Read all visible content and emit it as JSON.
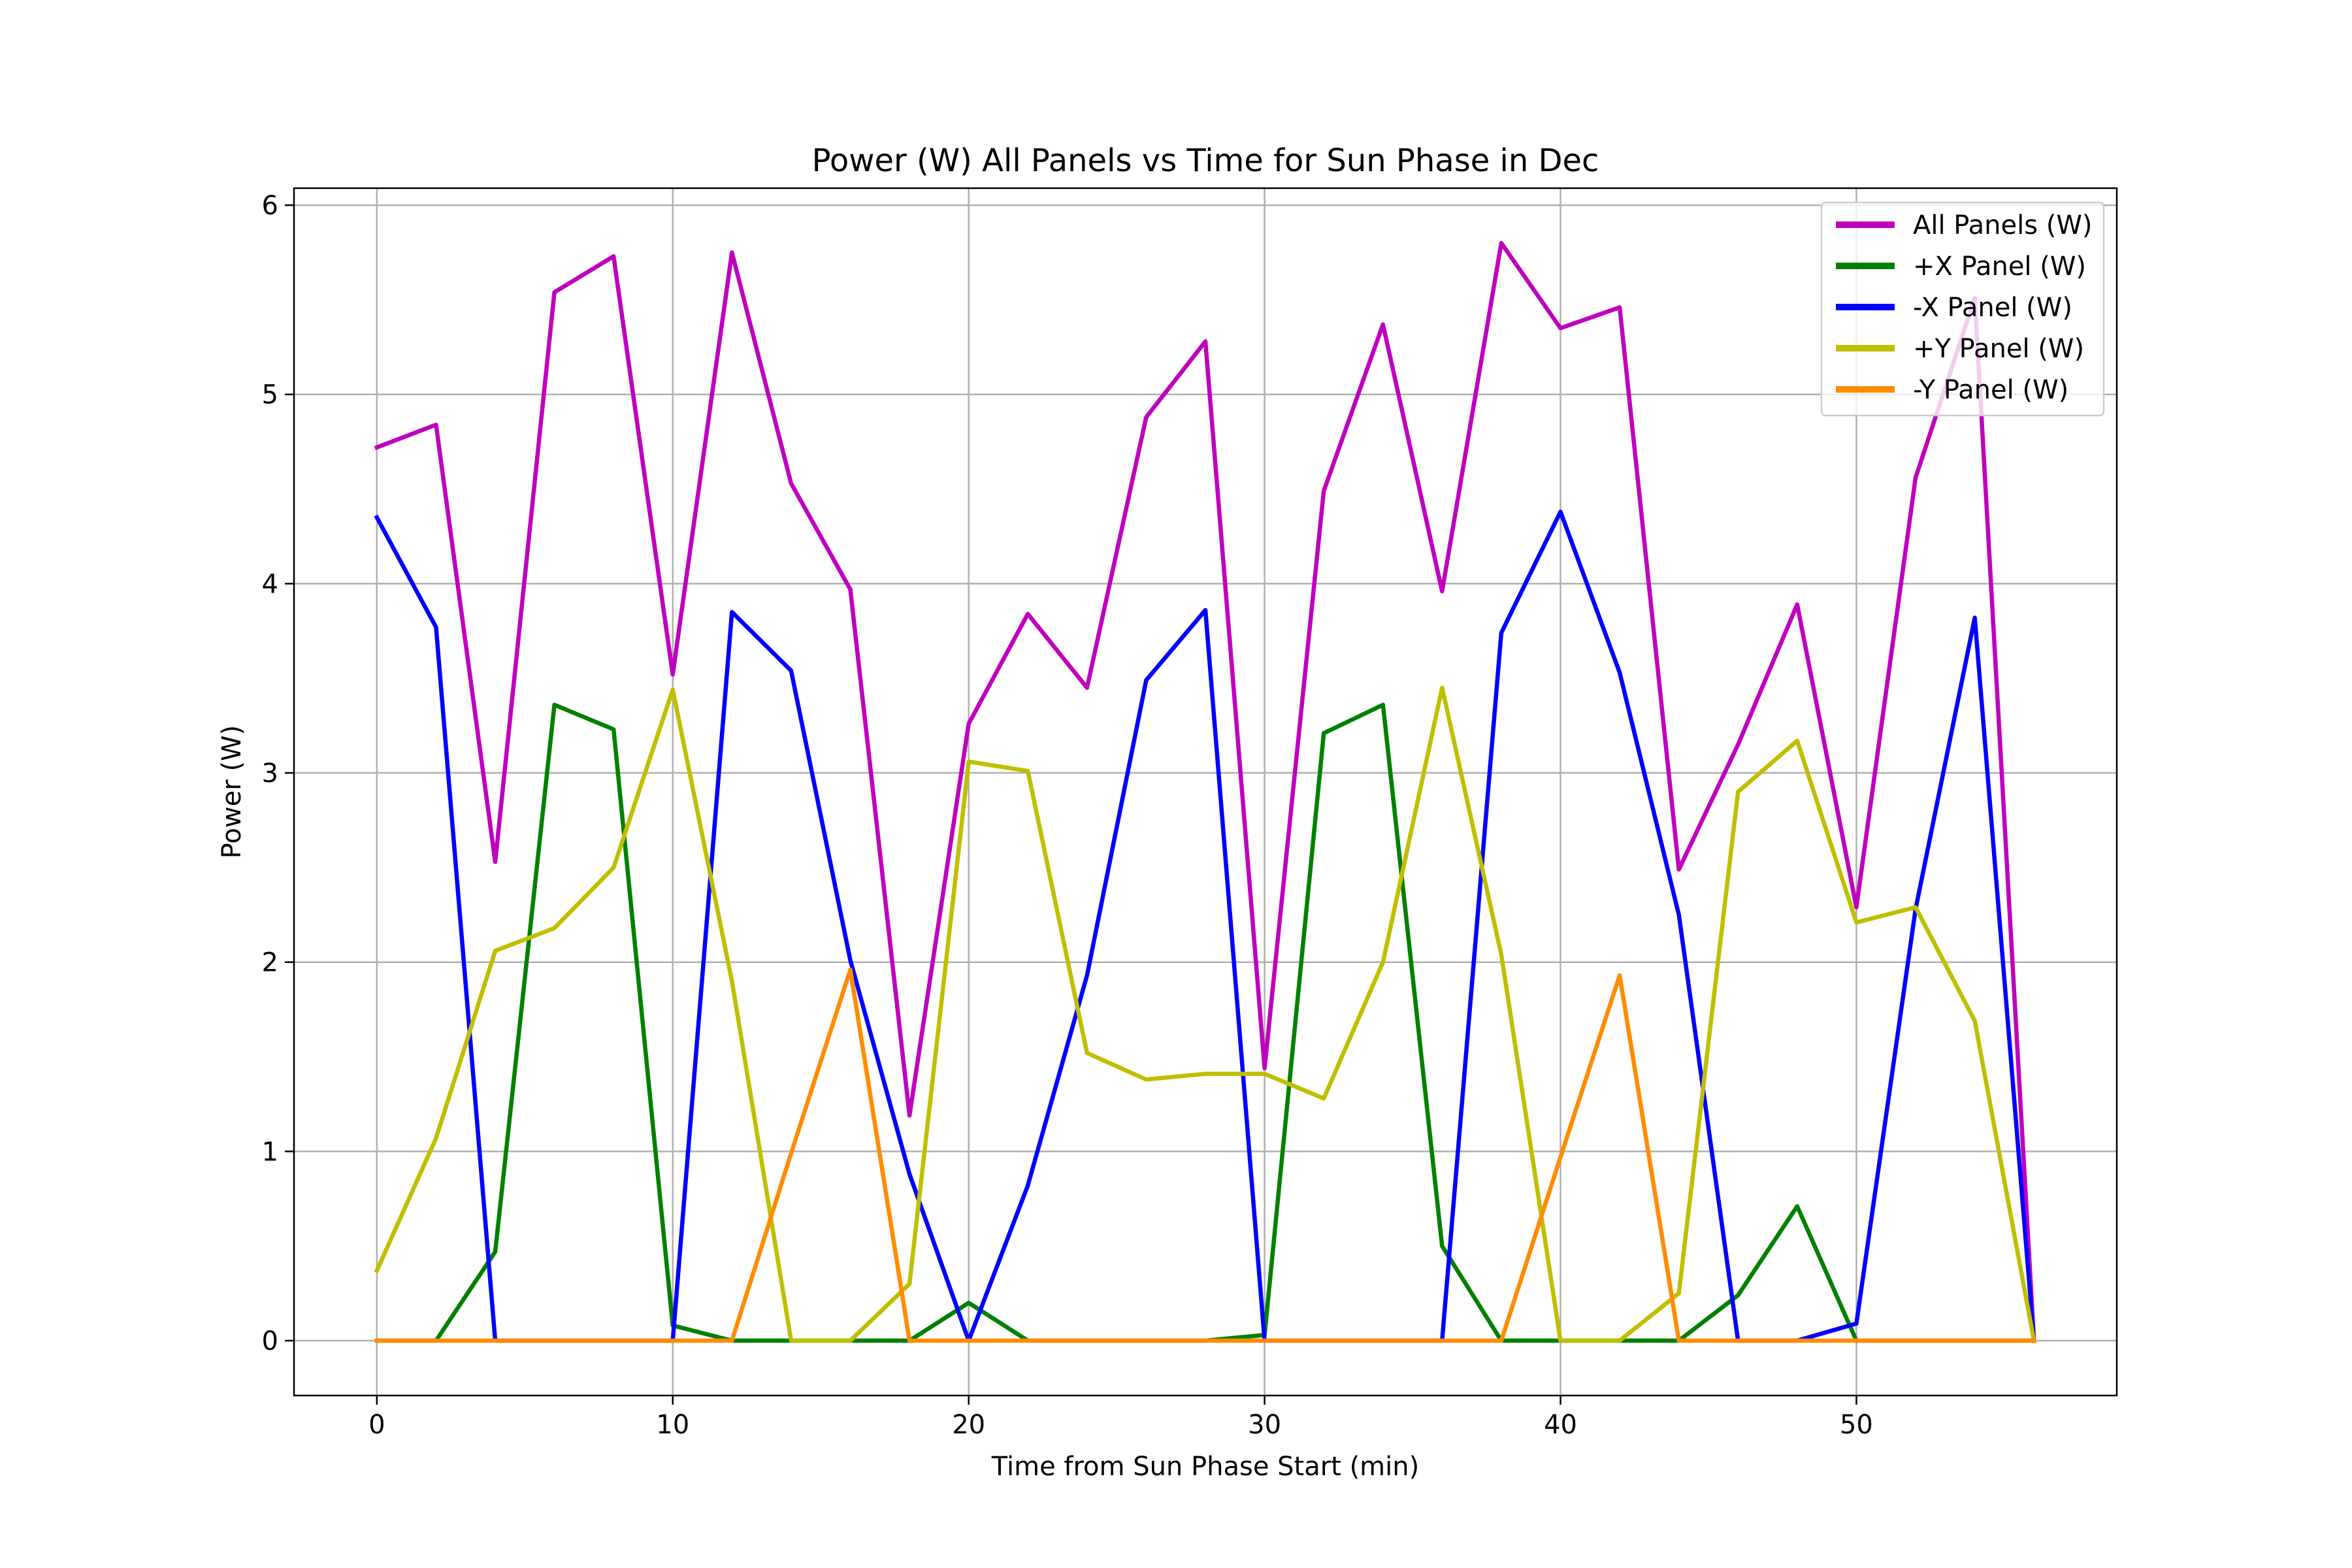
{
  "chart_data": {
    "type": "line",
    "title": "Power (W) All Panels vs Time for Sun Phase in Dec",
    "xlabel": "Time from Sun Phase Start (min)",
    "ylabel": "Power (W)",
    "xlim": [
      -2.8,
      58.8
    ],
    "ylim": [
      -0.29,
      6.09
    ],
    "xticks": [
      0,
      10,
      20,
      30,
      40,
      50
    ],
    "yticks": [
      0,
      1,
      2,
      3,
      4,
      5,
      6
    ],
    "grid": true,
    "legend_position": "top-right",
    "x": [
      0,
      2,
      4,
      6,
      8,
      10,
      12,
      14,
      16,
      18,
      20,
      22,
      24,
      26,
      28,
      30,
      32,
      34,
      36,
      38,
      40,
      42,
      44,
      46,
      48,
      50,
      52,
      54,
      56
    ],
    "series": [
      {
        "name": "All Panels (W)",
        "color": "#bf00bf",
        "values": [
          4.72,
          4.84,
          2.53,
          5.54,
          5.73,
          3.52,
          5.75,
          4.53,
          3.97,
          1.19,
          3.26,
          3.84,
          3.45,
          4.88,
          5.28,
          1.44,
          4.49,
          5.37,
          3.96,
          5.8,
          5.35,
          5.46,
          2.49,
          3.15,
          3.89,
          2.29,
          4.56,
          5.51,
          0.0
        ]
      },
      {
        "name": "+X Panel (W)",
        "color": "#008000",
        "values": [
          0.0,
          0.0,
          0.47,
          3.36,
          3.23,
          0.08,
          0.0,
          0.0,
          0.0,
          0.0,
          0.2,
          0.0,
          0.0,
          0.0,
          0.0,
          0.03,
          3.21,
          3.36,
          0.5,
          0.0,
          0.0,
          0.0,
          0.0,
          0.24,
          0.71,
          0.0,
          0.0,
          0.0,
          0.0
        ]
      },
      {
        "name": "-X Panel (W)",
        "color": "#0000ff",
        "values": [
          4.35,
          3.77,
          0.0,
          0.0,
          0.0,
          0.0,
          3.85,
          3.54,
          2.01,
          0.88,
          0.0,
          0.82,
          1.93,
          3.49,
          3.86,
          0.0,
          0.0,
          0.0,
          0.0,
          3.74,
          4.38,
          3.53,
          2.25,
          0.0,
          0.0,
          0.09,
          2.28,
          3.82,
          0.0
        ]
      },
      {
        "name": "+Y Panel (W)",
        "color": "#bfbf00",
        "values": [
          0.37,
          1.07,
          2.06,
          2.18,
          2.5,
          3.44,
          1.9,
          0.0,
          0.0,
          0.3,
          3.06,
          3.01,
          1.52,
          1.38,
          1.41,
          1.41,
          1.28,
          2.0,
          3.45,
          2.04,
          0.0,
          0.0,
          0.25,
          2.9,
          3.17,
          2.21,
          2.29,
          1.69,
          0.0
        ]
      },
      {
        "name": "-Y Panel (W)",
        "color": "#ff8c00",
        "values": [
          0.0,
          0.0,
          0.0,
          0.0,
          0.0,
          0.0,
          0.0,
          0.99,
          1.96,
          0.0,
          0.0,
          0.0,
          0.0,
          0.0,
          0.0,
          0.0,
          0.0,
          0.0,
          0.0,
          0.0,
          0.97,
          1.93,
          0.0,
          0.0,
          0.0,
          0.0,
          0.0,
          0.0,
          0.0
        ]
      }
    ]
  }
}
